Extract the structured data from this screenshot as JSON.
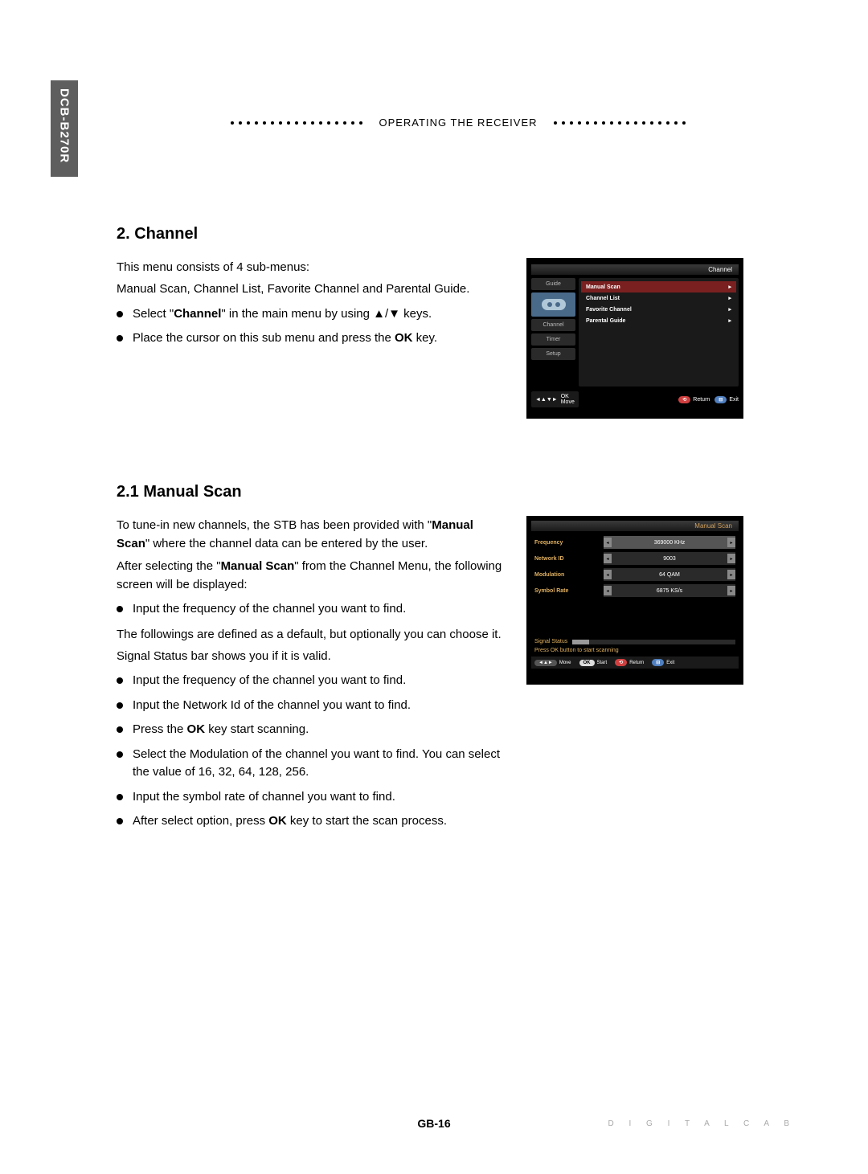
{
  "model": "DCB-B270R",
  "header": "OPERATING THE RECEIVER",
  "page_num": "GB-16",
  "footer_brand": "DIGITAL CAB",
  "section_channel": {
    "title": "2. Channel",
    "intro1": "This menu consists of 4 sub-menus:",
    "intro2": "Manual Scan, Channel List, Favorite Channel and Parental Guide.",
    "bullets": [
      {
        "pre": "Select \"",
        "bold": "Channel",
        "post": "\" in the main menu by using ▲/▼ keys."
      },
      {
        "pre": "Place the cursor on this sub menu and press the ",
        "bold": "OK",
        "post": " key."
      }
    ],
    "screenshot": {
      "title": "Channel",
      "tabs": [
        "Guide",
        "Channel",
        "Timer",
        "Setup"
      ],
      "menu": [
        "Manual Scan",
        "Channel List",
        "Favorite Channel",
        "Parental Guide"
      ],
      "nav_ok": "OK",
      "nav_move": "Move",
      "btn_return": "Return",
      "btn_exit": "Exit"
    }
  },
  "section_manual": {
    "title": "2.1 Manual Scan",
    "p1a": "To tune-in new channels, the STB has been provided with \"",
    "p1bold": "Manual Scan",
    "p1b": "\" where the channel data can be entered by the user.",
    "p2a": "After selecting the \"",
    "p2bold": "Manual Scan",
    "p2b": "\" from the Channel Menu, the following screen will be displayed:",
    "bul1": "Input the frequency of the channel you want to find.",
    "p3": "The followings are defined as a default, but optionally you can choose it.",
    "p4": "Signal Status bar shows you if it is valid.",
    "bullets2": [
      "Input the frequency of the channel you want to find.",
      "Input the Network Id of the channel you want to find.",
      {
        "pre": "Press the ",
        "bold": "OK",
        "post": " key start scanning."
      },
      "Select the Modulation of the channel you want to find. You can select the value of 16, 32, 64, 128, 256.",
      "Input the symbol rate of channel you want to find.",
      {
        "pre": "After select option, press ",
        "bold": "OK",
        "post": " key to start the scan process."
      }
    ],
    "screenshot": {
      "title": "Manual Scan",
      "rows": [
        {
          "label": "Frequency",
          "value": "369000 KHz",
          "hl": true
        },
        {
          "label": "Network ID",
          "value": "9003"
        },
        {
          "label": "Modulation",
          "value": "64 QAM"
        },
        {
          "label": "Symbol Rate",
          "value": "6875 KS/s"
        }
      ],
      "signal_label": "Signal Status",
      "prompt": "Press OK button to start scanning",
      "btn_move": "Move",
      "btn_start": "Start",
      "btn_return": "Return",
      "btn_exit": "Exit"
    }
  }
}
